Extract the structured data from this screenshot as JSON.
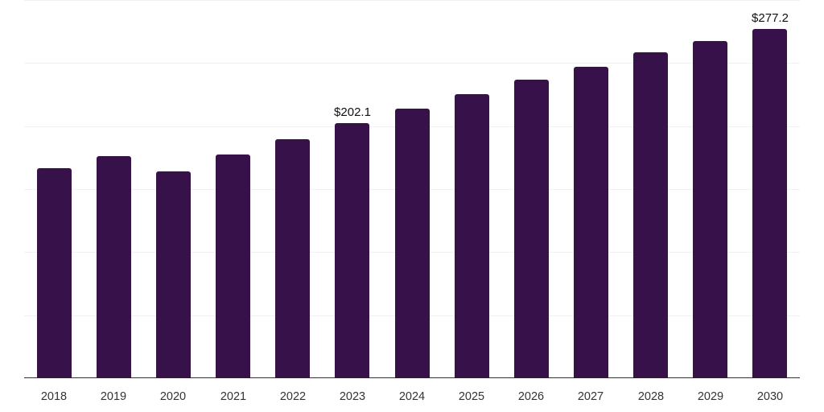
{
  "chart_data": {
    "type": "bar",
    "title": "",
    "xlabel": "",
    "ylabel": "",
    "categories": [
      "2018",
      "2019",
      "2020",
      "2021",
      "2022",
      "2023",
      "2024",
      "2025",
      "2026",
      "2027",
      "2028",
      "2029",
      "2030"
    ],
    "values": [
      166.8,
      176.4,
      164.2,
      177.6,
      189.8,
      202.1,
      214.1,
      225.6,
      236.5,
      247.3,
      258.2,
      267.7,
      277.2
    ],
    "data_labels": [
      {
        "category": "2023",
        "text": "$202.1"
      },
      {
        "category": "2030",
        "text": "$277.2"
      }
    ],
    "ylim": [
      0,
      300
    ],
    "y_gridlines": [
      0,
      50,
      100,
      150,
      200,
      250,
      300
    ],
    "grid": true,
    "legend": null,
    "bar_color": "#371149"
  }
}
